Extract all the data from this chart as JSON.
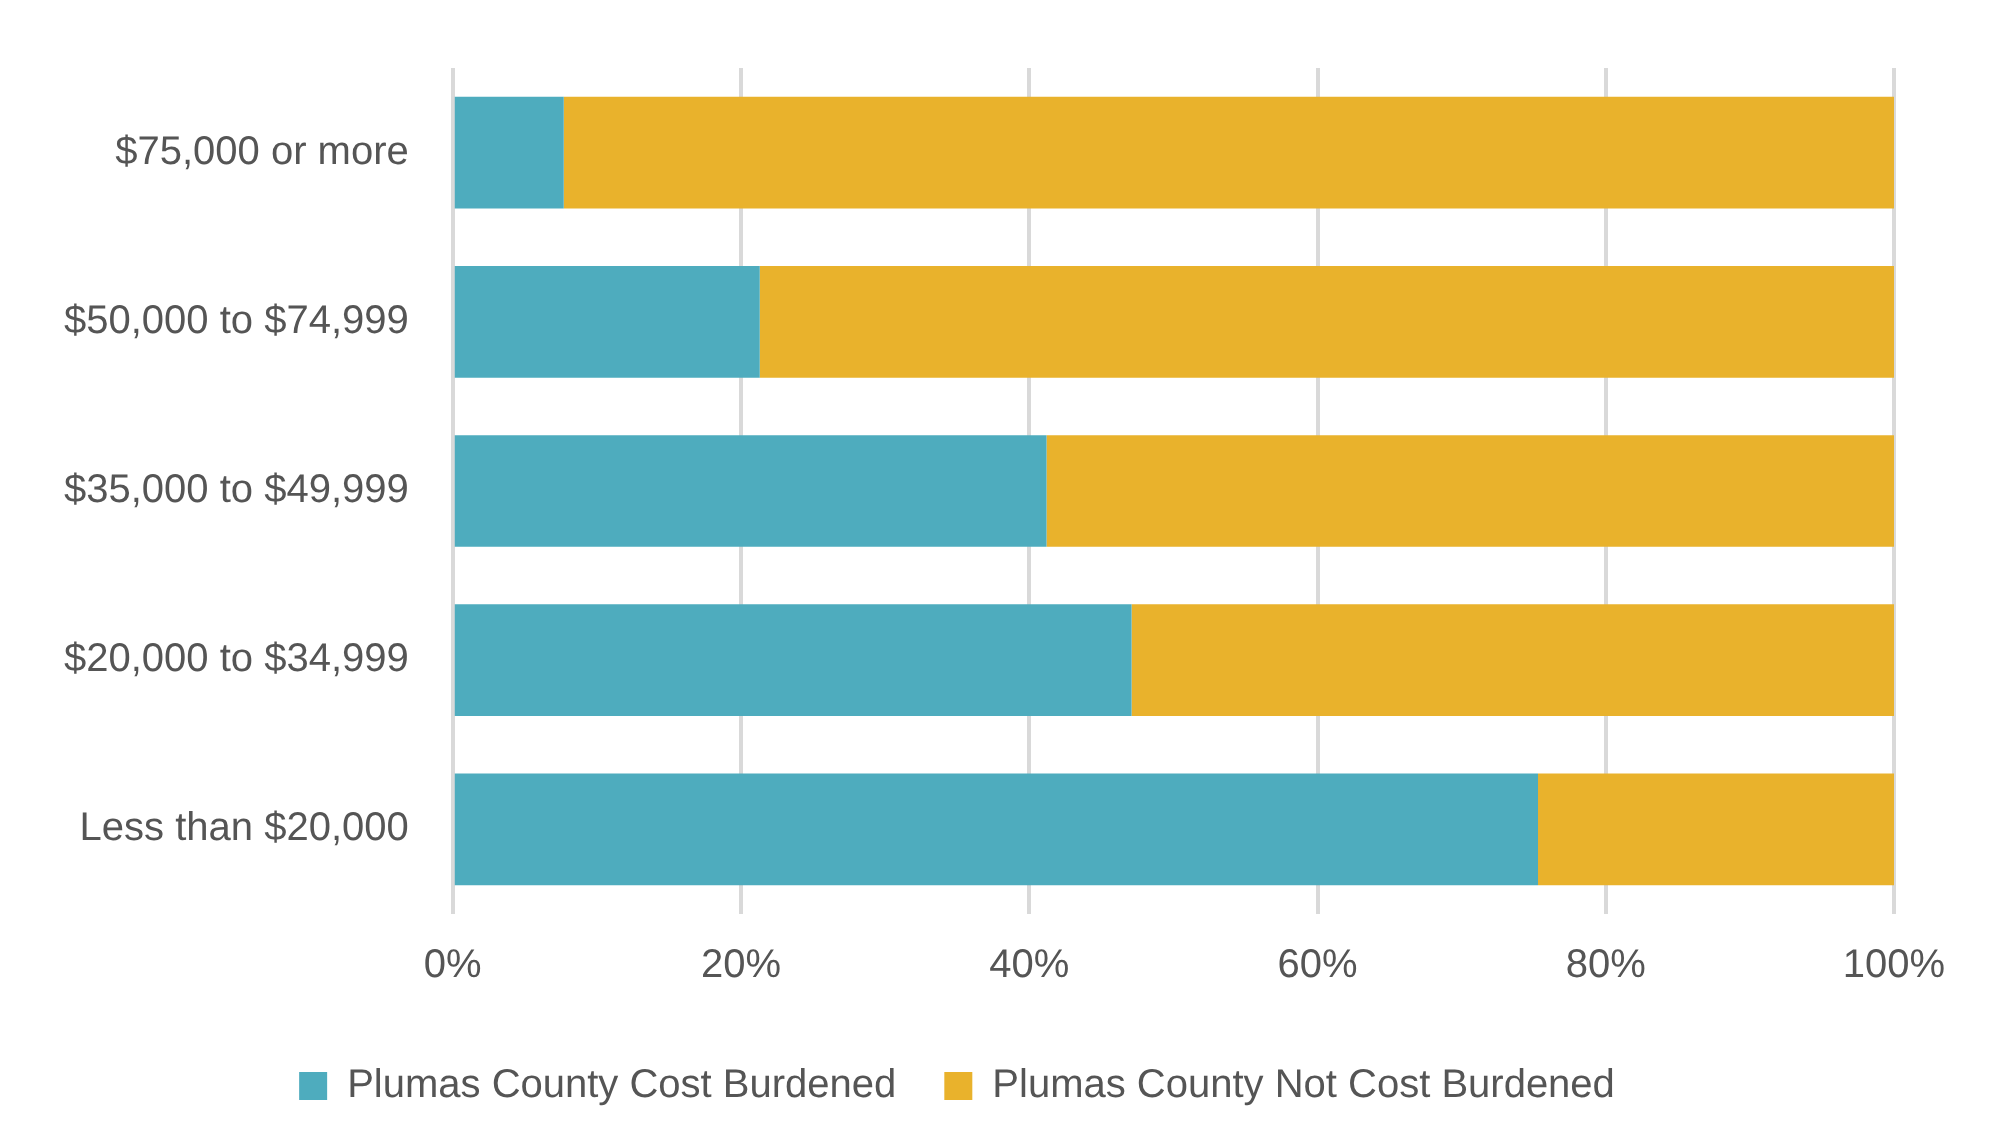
{
  "chart_data": {
    "type": "bar",
    "orientation": "horizontal",
    "stacked": true,
    "categories": [
      "$75,000 or more",
      "$50,000 to $74,999",
      "$35,000 to $49,999",
      "$20,000 to $34,999",
      "Less than $20,000"
    ],
    "series": [
      {
        "name": "Plumas County Cost Burdened",
        "color": "#4eacbe",
        "values": [
          7.7,
          21.3,
          41.2,
          47.1,
          75.3
        ]
      },
      {
        "name": "Plumas County Not Cost Burdened",
        "color": "#e9b22c",
        "values": [
          92.3,
          78.7,
          58.8,
          52.9,
          24.7
        ]
      }
    ],
    "xlim": [
      0,
      100
    ],
    "xticks": [
      {
        "value": 0,
        "label": "0%"
      },
      {
        "value": 20,
        "label": "20%"
      },
      {
        "value": 40,
        "label": "40%"
      },
      {
        "value": 60,
        "label": "60%"
      },
      {
        "value": 80,
        "label": "80%"
      },
      {
        "value": 100,
        "label": "100%"
      }
    ],
    "grid": "x",
    "legend": "bottom"
  }
}
